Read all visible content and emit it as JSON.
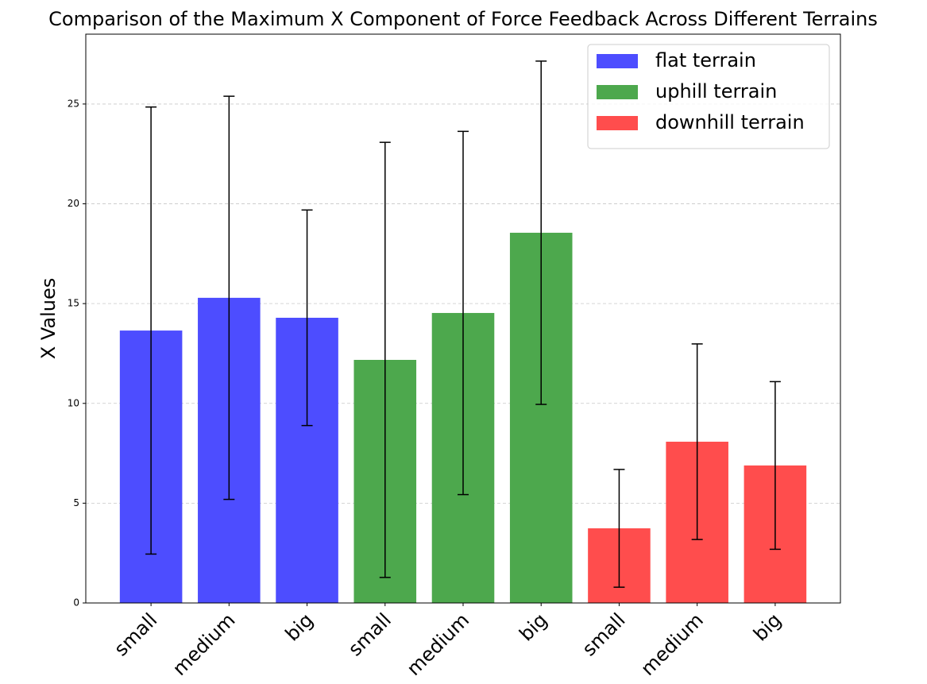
{
  "chart_data": {
    "type": "bar",
    "title": "Comparison of the Maximum X Component of Force Feedback Across Different Terrains",
    "y_label": "X Values",
    "categories": [
      "small",
      "medium",
      "big",
      "small",
      "medium",
      "big",
      "small",
      "medium",
      "big"
    ],
    "series": [
      {
        "name": "flat terrain",
        "color": "#4d4dff",
        "values": [
          13.65,
          15.29,
          14.29,
          null,
          null,
          null,
          null,
          null,
          null
        ],
        "errors": [
          11.2,
          10.1,
          5.4,
          null,
          null,
          null,
          null,
          null,
          null
        ]
      },
      {
        "name": "uphill terrain",
        "color": "#4da84d",
        "values": [
          null,
          null,
          null,
          12.18,
          14.53,
          18.55,
          null,
          null,
          null
        ],
        "errors": [
          null,
          null,
          null,
          10.9,
          9.1,
          8.6,
          null,
          null,
          null
        ]
      },
      {
        "name": "downhill terrain",
        "color": "#ff4d4d",
        "values": [
          null,
          null,
          null,
          null,
          null,
          null,
          3.74,
          8.08,
          6.89
        ],
        "errors": [
          null,
          null,
          null,
          null,
          null,
          null,
          2.95,
          4.9,
          4.2
        ]
      }
    ],
    "ylim": [
      0,
      28.5
    ],
    "yticks": [
      0,
      5,
      10,
      15,
      20,
      25
    ],
    "grid": true,
    "legend": "upper right"
  }
}
